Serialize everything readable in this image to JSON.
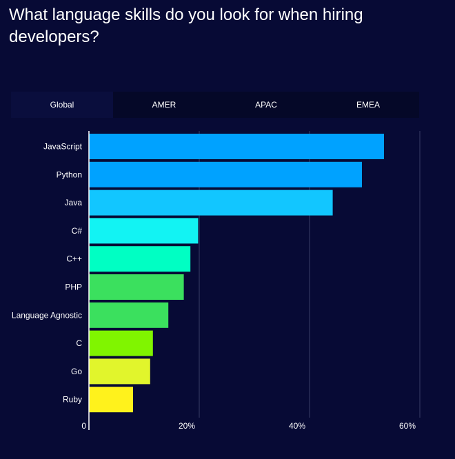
{
  "title": "What language skills do you look for when hiring developers?",
  "tabs": [
    {
      "label": "Global",
      "active": true
    },
    {
      "label": "AMER",
      "active": false
    },
    {
      "label": "APAC",
      "active": false
    },
    {
      "label": "EMEA",
      "active": false
    }
  ],
  "chart_data": {
    "type": "bar",
    "orientation": "horizontal",
    "categories": [
      "JavaScript",
      "Python",
      "Java",
      "C#",
      "C++",
      "PHP",
      "Language Agnostic",
      "C",
      "Go",
      "Ruby"
    ],
    "values": [
      53.5,
      49.5,
      44.2,
      19.8,
      18.4,
      17.2,
      14.4,
      11.6,
      11.1,
      8.0
    ],
    "colors": [
      "#00a2ff",
      "#00a2ff",
      "#12c6ff",
      "#12f3f3",
      "#00ffc3",
      "#3be05e",
      "#3be05e",
      "#80f500",
      "#e1f52c",
      "#fff21c"
    ],
    "x_ticks": [
      "0",
      "20%",
      "40%",
      "60%"
    ],
    "x_tick_values": [
      0,
      20,
      40,
      60
    ],
    "xlim": [
      0,
      60
    ],
    "grid": true
  }
}
